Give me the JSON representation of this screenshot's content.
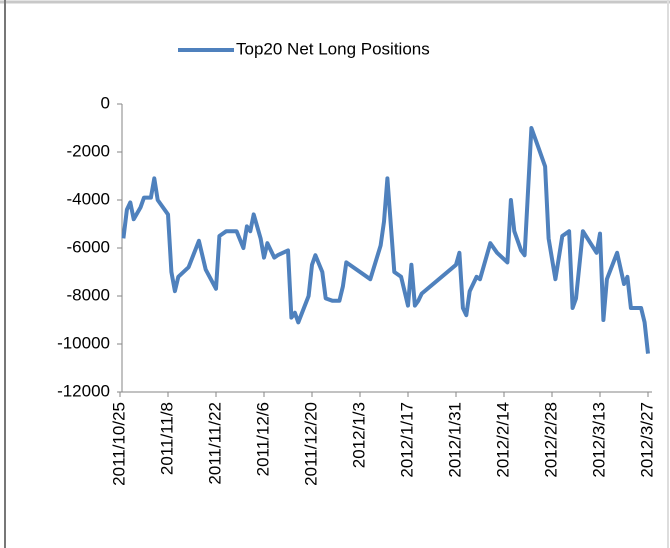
{
  "chart_data": {
    "type": "line",
    "series": [
      {
        "name": "Top20 Net Long Positions",
        "color": "#4f81bd",
        "x": [
          "2011/10/26",
          "2011/10/27",
          "2011/10/28",
          "2011/10/29",
          "2011/10/31",
          "2011/11/1",
          "2011/11/3",
          "2011/11/4",
          "2011/11/5",
          "2011/11/8",
          "2011/11/9",
          "2011/11/10",
          "2011/11/11",
          "2011/11/14",
          "2011/11/17",
          "2011/11/19",
          "2011/11/22",
          "2011/11/23",
          "2011/11/25",
          "2011/11/28",
          "2011/11/30",
          "2011/12/1",
          "2011/12/2",
          "2011/12/3",
          "2011/12/5",
          "2011/12/6",
          "2011/12/7",
          "2011/12/9",
          "2011/12/10",
          "2011/12/13",
          "2011/12/14",
          "2011/12/15",
          "2011/12/16",
          "2011/12/19",
          "2011/12/20",
          "2011/12/21",
          "2011/12/23",
          "2011/12/24",
          "2011/12/26",
          "2011/12/28",
          "2011/12/29",
          "2011/12/30",
          "2012/1/6",
          "2012/1/9",
          "2012/1/10",
          "2012/1/11",
          "2012/1/13",
          "2012/1/15",
          "2012/1/17",
          "2012/1/18",
          "2012/1/19",
          "2012/1/20",
          "2012/1/21",
          "2012/1/31",
          "2012/2/1",
          "2012/2/2",
          "2012/2/3",
          "2012/2/4",
          "2012/2/6",
          "2012/2/7",
          "2012/2/10",
          "2012/2/12",
          "2012/2/15",
          "2012/2/16",
          "2012/2/17",
          "2012/2/19",
          "2012/2/20",
          "2012/2/22",
          "2012/2/24",
          "2012/2/26",
          "2012/2/27",
          "2012/2/29",
          "2012/3/2",
          "2012/3/4",
          "2012/3/5",
          "2012/3/6",
          "2012/3/8",
          "2012/3/12",
          "2012/3/13",
          "2012/3/14",
          "2012/3/15",
          "2012/3/18",
          "2012/3/20",
          "2012/3/21",
          "2012/3/22",
          "2012/3/25",
          "2012/3/26",
          "2012/3/27"
        ],
        "values": [
          -5600,
          -4400,
          -4100,
          -4800,
          -4300,
          -3900,
          -3900,
          -3100,
          -4000,
          -4600,
          -7000,
          -7800,
          -7200,
          -6800,
          -5700,
          -6900,
          -7700,
          -5500,
          -5300,
          -5300,
          -6000,
          -5100,
          -5300,
          -4600,
          -5600,
          -6400,
          -5800,
          -6400,
          -6300,
          -6100,
          -8900,
          -8700,
          -9100,
          -8000,
          -6700,
          -6300,
          -7000,
          -8100,
          -8200,
          -8200,
          -7600,
          -6600,
          -7300,
          -5900,
          -4900,
          -3100,
          -7000,
          -7200,
          -8400,
          -6700,
          -8400,
          -8200,
          -7900,
          -6700,
          -6200,
          -8500,
          -8800,
          -7800,
          -7200,
          -7300,
          -5800,
          -6200,
          -6600,
          -4000,
          -5300,
          -6100,
          -6300,
          -1000,
          -1800,
          -2600,
          -5600,
          -7300,
          -5500,
          -5300,
          -8500,
          -8100,
          -5300,
          -6200,
          -5400,
          -9000,
          -7300,
          -6200,
          -7500,
          -7200,
          -8500,
          -8500,
          -9100,
          -10400
        ]
      }
    ],
    "xlim": [
      "2011/10/25",
      "2012/3/27"
    ],
    "xticks": [
      "2011/10/25",
      "2011/11/8",
      "2011/11/22",
      "2011/12/6",
      "2011/12/20",
      "2012/1/3",
      "2012/1/17",
      "2012/1/31",
      "2012/2/14",
      "2012/2/28",
      "2012/3/13",
      "2012/3/27"
    ],
    "ylim": [
      -12000,
      0
    ],
    "yticks": [
      0,
      -2000,
      -4000,
      -6000,
      -8000,
      -10000,
      -12000
    ],
    "grid": false,
    "legend": "top"
  }
}
